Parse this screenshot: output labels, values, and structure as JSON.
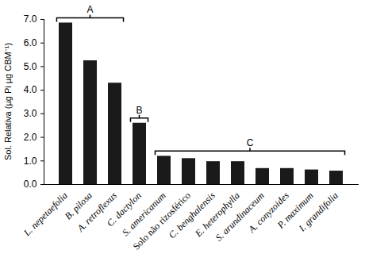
{
  "chart_data": {
    "type": "bar",
    "y_label": "Sol. Relativa (µg Pi µg CBM⁻¹)",
    "categories": [
      "L. nepetaefolia",
      "B. pilosa",
      "A. retroflexus",
      "C. dactylon",
      "S. americanum",
      "Solo não rizosférico",
      "C. benghalensis",
      "E. heterophylla",
      "S. arundinaceum",
      "A. conyzoides",
      "P. maximum",
      "I. grandifolia"
    ],
    "values": [
      6.85,
      5.25,
      4.3,
      2.6,
      1.2,
      1.1,
      0.97,
      0.97,
      0.68,
      0.68,
      0.62,
      0.57
    ],
    "color": "#1a1a1a",
    "ylim": [
      0,
      7
    ],
    "yticks": [
      0,
      1,
      2,
      3,
      4,
      5,
      6,
      7
    ],
    "grid": false,
    "annotations": [
      {
        "text": "A",
        "categories": [
          "L. nepetaefolia",
          "B. pilosa",
          "A. retroflexus"
        ]
      },
      {
        "text": "B",
        "categories": [
          "C. dactylon"
        ]
      },
      {
        "text": "C",
        "categories": [
          "S. americanum",
          "Solo não rizosférico",
          "C. benghalensis",
          "E. heterophylla",
          "S. arundinaceum",
          "A. conyzoides",
          "P. maximum",
          "I. grandifolia"
        ]
      }
    ]
  }
}
